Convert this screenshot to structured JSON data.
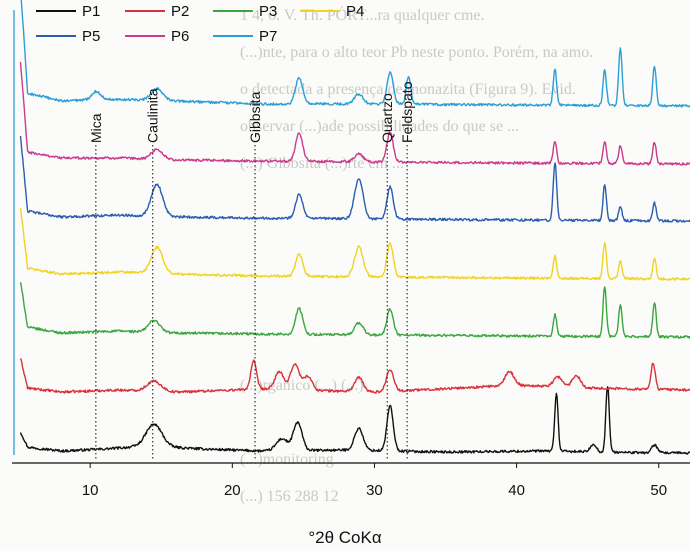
{
  "background_text": [
    "1 4, 6. V. Th. PÓRT...ra qualquer cme.",
    "(...)nte, para o alto teor Pb neste ponto. Porém, na amo.",
    "o detectada a presença de monazita (Figura 9). Evid.",
    "observar (...)ade possibilidades do que se ...",
    "(...) Gibbsita (...)rte em ...",
    "",
    "",
    "",
    "",
    "",
    "(...)rganico   (...)  (...)",
    "",
    "(...)monitoring",
    "(...)  156   288   12"
  ],
  "chart_data": {
    "type": "line",
    "xlabel": "°2θ CoKα",
    "xlim": [
      4.5,
      52.2
    ],
    "x_ticks": [
      10,
      20,
      30,
      40,
      50
    ],
    "y_axis": "none (offset XRD patterns)",
    "grid": false,
    "legend": {
      "placement": "top-left",
      "columns": 4
    },
    "series": [
      {
        "name": "P1",
        "color": "#111111",
        "baseline": 0.0,
        "background": [
          [
            5.5,
            8
          ],
          [
            8,
            4
          ],
          [
            11,
            6
          ],
          [
            14,
            9
          ],
          [
            18,
            6
          ],
          [
            22,
            4
          ],
          [
            28,
            5
          ],
          [
            35,
            3
          ],
          [
            42,
            4
          ],
          [
            50,
            2
          ],
          [
            52.2,
            2
          ]
        ],
        "peaks": [
          [
            14.5,
            22,
            0.55
          ],
          [
            23.5,
            12,
            0.4
          ],
          [
            24.6,
            28,
            0.3
          ],
          [
            28.9,
            22,
            0.3
          ],
          [
            31.1,
            45,
            0.22
          ],
          [
            42.8,
            58,
            0.12
          ],
          [
            45.4,
            8,
            0.2
          ],
          [
            46.4,
            66,
            0.12
          ],
          [
            49.7,
            8,
            0.2
          ]
        ]
      },
      {
        "name": "P2",
        "color": "#d9303a",
        "baseline": 1.0,
        "background": [
          [
            5.5,
            10
          ],
          [
            8,
            6
          ],
          [
            12,
            8
          ],
          [
            16,
            6
          ],
          [
            22,
            9
          ],
          [
            30,
            6
          ],
          [
            36,
            10
          ],
          [
            40,
            13
          ],
          [
            45,
            10
          ],
          [
            52.2,
            8
          ]
        ],
        "peaks": [
          [
            14.5,
            10,
            0.5
          ],
          [
            21.5,
            28,
            0.2
          ],
          [
            23.3,
            18,
            0.3
          ],
          [
            24.4,
            26,
            0.3
          ],
          [
            25.3,
            14,
            0.3
          ],
          [
            28.9,
            14,
            0.3
          ],
          [
            31.1,
            22,
            0.25
          ],
          [
            39.5,
            14,
            0.3
          ],
          [
            42.9,
            10,
            0.3
          ],
          [
            44.2,
            12,
            0.3
          ],
          [
            49.6,
            26,
            0.15
          ]
        ]
      },
      {
        "name": "P3",
        "color": "#3aa63d",
        "baseline": 2.0,
        "background": [
          [
            5.5,
            14
          ],
          [
            8,
            8
          ],
          [
            12,
            10
          ],
          [
            16,
            8
          ],
          [
            22,
            7
          ],
          [
            30,
            6
          ],
          [
            40,
            5
          ],
          [
            52.2,
            4
          ]
        ],
        "peaks": [
          [
            14.5,
            12,
            0.4
          ],
          [
            24.7,
            26,
            0.25
          ],
          [
            28.9,
            12,
            0.3
          ],
          [
            31.1,
            26,
            0.22
          ],
          [
            42.7,
            22,
            0.12
          ],
          [
            46.2,
            50,
            0.12
          ],
          [
            47.3,
            32,
            0.12
          ],
          [
            49.7,
            34,
            0.12
          ]
        ]
      },
      {
        "name": "P4",
        "color": "#f2d320",
        "baseline": 3.0,
        "background": [
          [
            5.5,
            16
          ],
          [
            8,
            10
          ],
          [
            12,
            12
          ],
          [
            16,
            10
          ],
          [
            22,
            8
          ],
          [
            30,
            7
          ],
          [
            40,
            6
          ],
          [
            52.2,
            5
          ]
        ],
        "peaks": [
          [
            14.7,
            26,
            0.4
          ],
          [
            24.7,
            22,
            0.25
          ],
          [
            28.9,
            30,
            0.3
          ],
          [
            31.1,
            34,
            0.22
          ],
          [
            42.7,
            22,
            0.12
          ],
          [
            46.2,
            36,
            0.12
          ],
          [
            47.3,
            18,
            0.12
          ],
          [
            49.7,
            20,
            0.12
          ]
        ]
      },
      {
        "name": "P5",
        "color": "#2a5db0",
        "baseline": 4.0,
        "background": [
          [
            5.5,
            16
          ],
          [
            8,
            10
          ],
          [
            12,
            12
          ],
          [
            16,
            10
          ],
          [
            22,
            9
          ],
          [
            30,
            8
          ],
          [
            40,
            7
          ],
          [
            52.2,
            6
          ]
        ],
        "peaks": [
          [
            14.7,
            32,
            0.4
          ],
          [
            24.7,
            24,
            0.25
          ],
          [
            28.9,
            40,
            0.3
          ],
          [
            31.1,
            32,
            0.22
          ],
          [
            42.7,
            58,
            0.12
          ],
          [
            46.2,
            36,
            0.12
          ],
          [
            47.3,
            14,
            0.12
          ],
          [
            49.7,
            18,
            0.12
          ]
        ]
      },
      {
        "name": "P6",
        "color": "#cc3a8c",
        "baseline": 5.0,
        "background": [
          [
            5.5,
            18
          ],
          [
            8,
            12
          ],
          [
            12,
            12
          ],
          [
            16,
            10
          ],
          [
            22,
            9
          ],
          [
            30,
            8
          ],
          [
            40,
            7
          ],
          [
            52.2,
            6
          ]
        ],
        "peaks": [
          [
            14.7,
            10,
            0.4
          ],
          [
            24.7,
            28,
            0.25
          ],
          [
            28.9,
            8,
            0.3
          ],
          [
            31.1,
            30,
            0.22
          ],
          [
            42.7,
            22,
            0.12
          ],
          [
            46.2,
            22,
            0.12
          ],
          [
            47.3,
            18,
            0.12
          ],
          [
            49.7,
            22,
            0.12
          ]
        ]
      },
      {
        "name": "P7",
        "color": "#2a9fd6",
        "baseline": 6.0,
        "background": [
          [
            5.5,
            20
          ],
          [
            8,
            12
          ],
          [
            11,
            14
          ],
          [
            16,
            12
          ],
          [
            22,
            9
          ],
          [
            30,
            9
          ],
          [
            40,
            8
          ],
          [
            52.2,
            7
          ]
        ],
        "peaks": [
          [
            10.4,
            8,
            0.3
          ],
          [
            14.7,
            12,
            0.4
          ],
          [
            24.7,
            26,
            0.25
          ],
          [
            28.9,
            10,
            0.3
          ],
          [
            31.1,
            32,
            0.22
          ],
          [
            32.4,
            28,
            0.15
          ],
          [
            42.7,
            36,
            0.12
          ],
          [
            46.2,
            36,
            0.12
          ],
          [
            47.3,
            58,
            0.12
          ],
          [
            49.7,
            40,
            0.12
          ]
        ]
      }
    ],
    "annotations": [
      {
        "label": "Mica",
        "x": 10.4
      },
      {
        "label": "Caulinita",
        "x": 14.4
      },
      {
        "label": "Gibbsita",
        "x": 21.6
      },
      {
        "label": "Quartzo",
        "x": 30.9
      },
      {
        "label": "Feldspato",
        "x": 32.3
      }
    ]
  }
}
